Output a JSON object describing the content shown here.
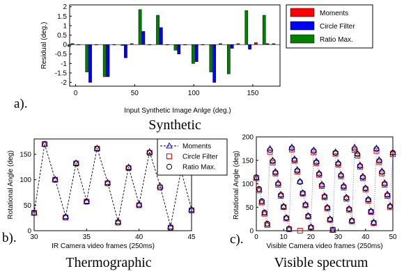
{
  "chart_data": [
    {
      "type": "bar",
      "caption": "Synthetic",
      "panel_label": "a).",
      "xlabel": "Input Synthetic  Image Anlge (deg.)",
      "ylabel": "Residual (deg.)",
      "xlim": [
        -5,
        173
      ],
      "ylim": [
        -2.2,
        2.1
      ],
      "xticks": [
        0,
        50,
        100,
        150
      ],
      "yticks": [
        2,
        1.5,
        1,
        0.5,
        0,
        -0.5,
        -1,
        -1.5,
        -2
      ],
      "x": [
        0,
        15,
        30,
        45,
        60,
        75,
        90,
        105,
        120,
        135,
        150,
        165
      ],
      "series": [
        {
          "name": "Moments",
          "color": "#ff0000",
          "values": [
            0,
            0,
            0,
            0.05,
            0,
            0,
            0,
            0,
            0.05,
            0.05,
            0.1,
            0.05
          ]
        },
        {
          "name": "Circle Filter",
          "color": "#0000ff",
          "values": [
            0.05,
            -2.0,
            -1.7,
            -0.7,
            0.7,
            0.9,
            -0.5,
            -0.9,
            -2.0,
            -0.2,
            -0.25,
            0.05
          ]
        },
        {
          "name": "Ratio Max.",
          "color": "#008000",
          "values": [
            -0.1,
            -1.45,
            -1.7,
            -0.05,
            1.85,
            1.55,
            -0.3,
            -1.0,
            -1.45,
            -1.55,
            1.8,
            1.55
          ]
        }
      ],
      "legend": "top-right"
    },
    {
      "type": "line",
      "caption": "Thermographic",
      "panel_label": "b).",
      "xlabel": "IR Camera video frames (250ms)",
      "ylabel": "Rotational Angle (deg)",
      "xlim": [
        30,
        45
      ],
      "ylim": [
        0,
        180
      ],
      "xticks": [
        30,
        35,
        40,
        45
      ],
      "yticks": [
        0,
        50,
        100,
        150
      ],
      "x": [
        30,
        31,
        32,
        33,
        34,
        35,
        36,
        37,
        38,
        39,
        40,
        41,
        42,
        43,
        44,
        45
      ],
      "series": [
        {
          "name": "Moments",
          "color": "#0000ff",
          "marker": "triangle",
          "line": "dashed",
          "values": [
            35,
            170,
            101,
            28,
            133,
            58,
            162,
            95,
            18,
            125,
            52,
            155,
            88,
            8,
            118,
            42
          ]
        },
        {
          "name": "Circle Filter",
          "color": "#ff0000",
          "marker": "square",
          "line": "none",
          "values": [
            35,
            170,
            100,
            26,
            132,
            57,
            161,
            93,
            16,
            123,
            50,
            153,
            85,
            6,
            115,
            40
          ]
        },
        {
          "name": "Ratio Max.",
          "color": "#000000",
          "marker": "circle",
          "line": "none",
          "values": [
            35,
            170,
            100,
            26,
            132,
            57,
            161,
            93,
            16,
            123,
            50,
            153,
            85,
            6,
            115,
            40
          ]
        }
      ],
      "legend": "top-right"
    },
    {
      "type": "line",
      "caption": "Visible spectrum",
      "panel_label": "c).",
      "xlabel": "Visible Camera video frames (250ms)",
      "ylabel": "Rotational Angle (deg)",
      "xlim": [
        0,
        50
      ],
      "ylim": [
        0,
        200
      ],
      "xticks": [
        0,
        10,
        20,
        30,
        40,
        50
      ],
      "yticks": [
        0,
        50,
        100,
        150,
        200
      ],
      "x": [
        0,
        1,
        2,
        3,
        4,
        5,
        6,
        7,
        8,
        9,
        10,
        11,
        12,
        13,
        14,
        15,
        16,
        17,
        18,
        19,
        20,
        21,
        22,
        23,
        24,
        25,
        26,
        27,
        28,
        29,
        30,
        31,
        32,
        33,
        34,
        35,
        36,
        37,
        38,
        39,
        40,
        41,
        42,
        43,
        44,
        45,
        46,
        47,
        48,
        49,
        50
      ],
      "series": [
        {
          "name": "Moments",
          "color": "#0000ff",
          "marker": "triangle",
          "line": "dotted",
          "values": [
            113,
            88,
            62,
            38,
            14,
            175,
            150,
            126,
            102,
            77,
            52,
            28,
            4,
            178,
            153,
            130,
            105,
            81,
            56,
            32,
            8,
            172,
            148,
            123,
            99,
            74,
            50,
            25,
            1,
            168,
            145,
            120,
            96,
            71,
            47,
            22,
            178,
            165,
            140,
            116,
            91,
            67,
            42,
            18,
            176,
            151,
            127,
            102,
            78,
            53,
            167
          ]
        },
        {
          "name": "Circle Filter",
          "color": "#ff0000",
          "marker": "square",
          "line": "none",
          "values": [
            112,
            86,
            60,
            36,
            12,
            168,
            145,
            122,
            98,
            74,
            50,
            26,
            3,
            173,
            149,
            126,
            0,
            79,
            54,
            30,
            6,
            167,
            144,
            119,
            95,
            71,
            47,
            23,
            2,
            164,
            141,
            116,
            92,
            68,
            44,
            20,
            172,
            160,
            136,
            112,
            88,
            64,
            40,
            16,
            170,
            146,
            122,
            98,
            74,
            50,
            163
          ]
        },
        {
          "name": "Ratio Max.",
          "color": "#000000",
          "marker": "circle",
          "line": "none",
          "values": [
            114,
            89,
            63,
            39,
            15,
            172,
            148,
            124,
            100,
            76,
            51,
            27,
            4,
            176,
            151,
            128,
            104,
            80,
            55,
            31,
            7,
            170,
            146,
            121,
            97,
            73,
            49,
            24,
            2,
            166,
            143,
            118,
            94,
            70,
            46,
            21,
            175,
            163,
            138,
            114,
            90,
            66,
            41,
            17,
            174,
            149,
            125,
            100,
            76,
            52,
            166
          ]
        }
      ],
      "legend": "none"
    }
  ]
}
